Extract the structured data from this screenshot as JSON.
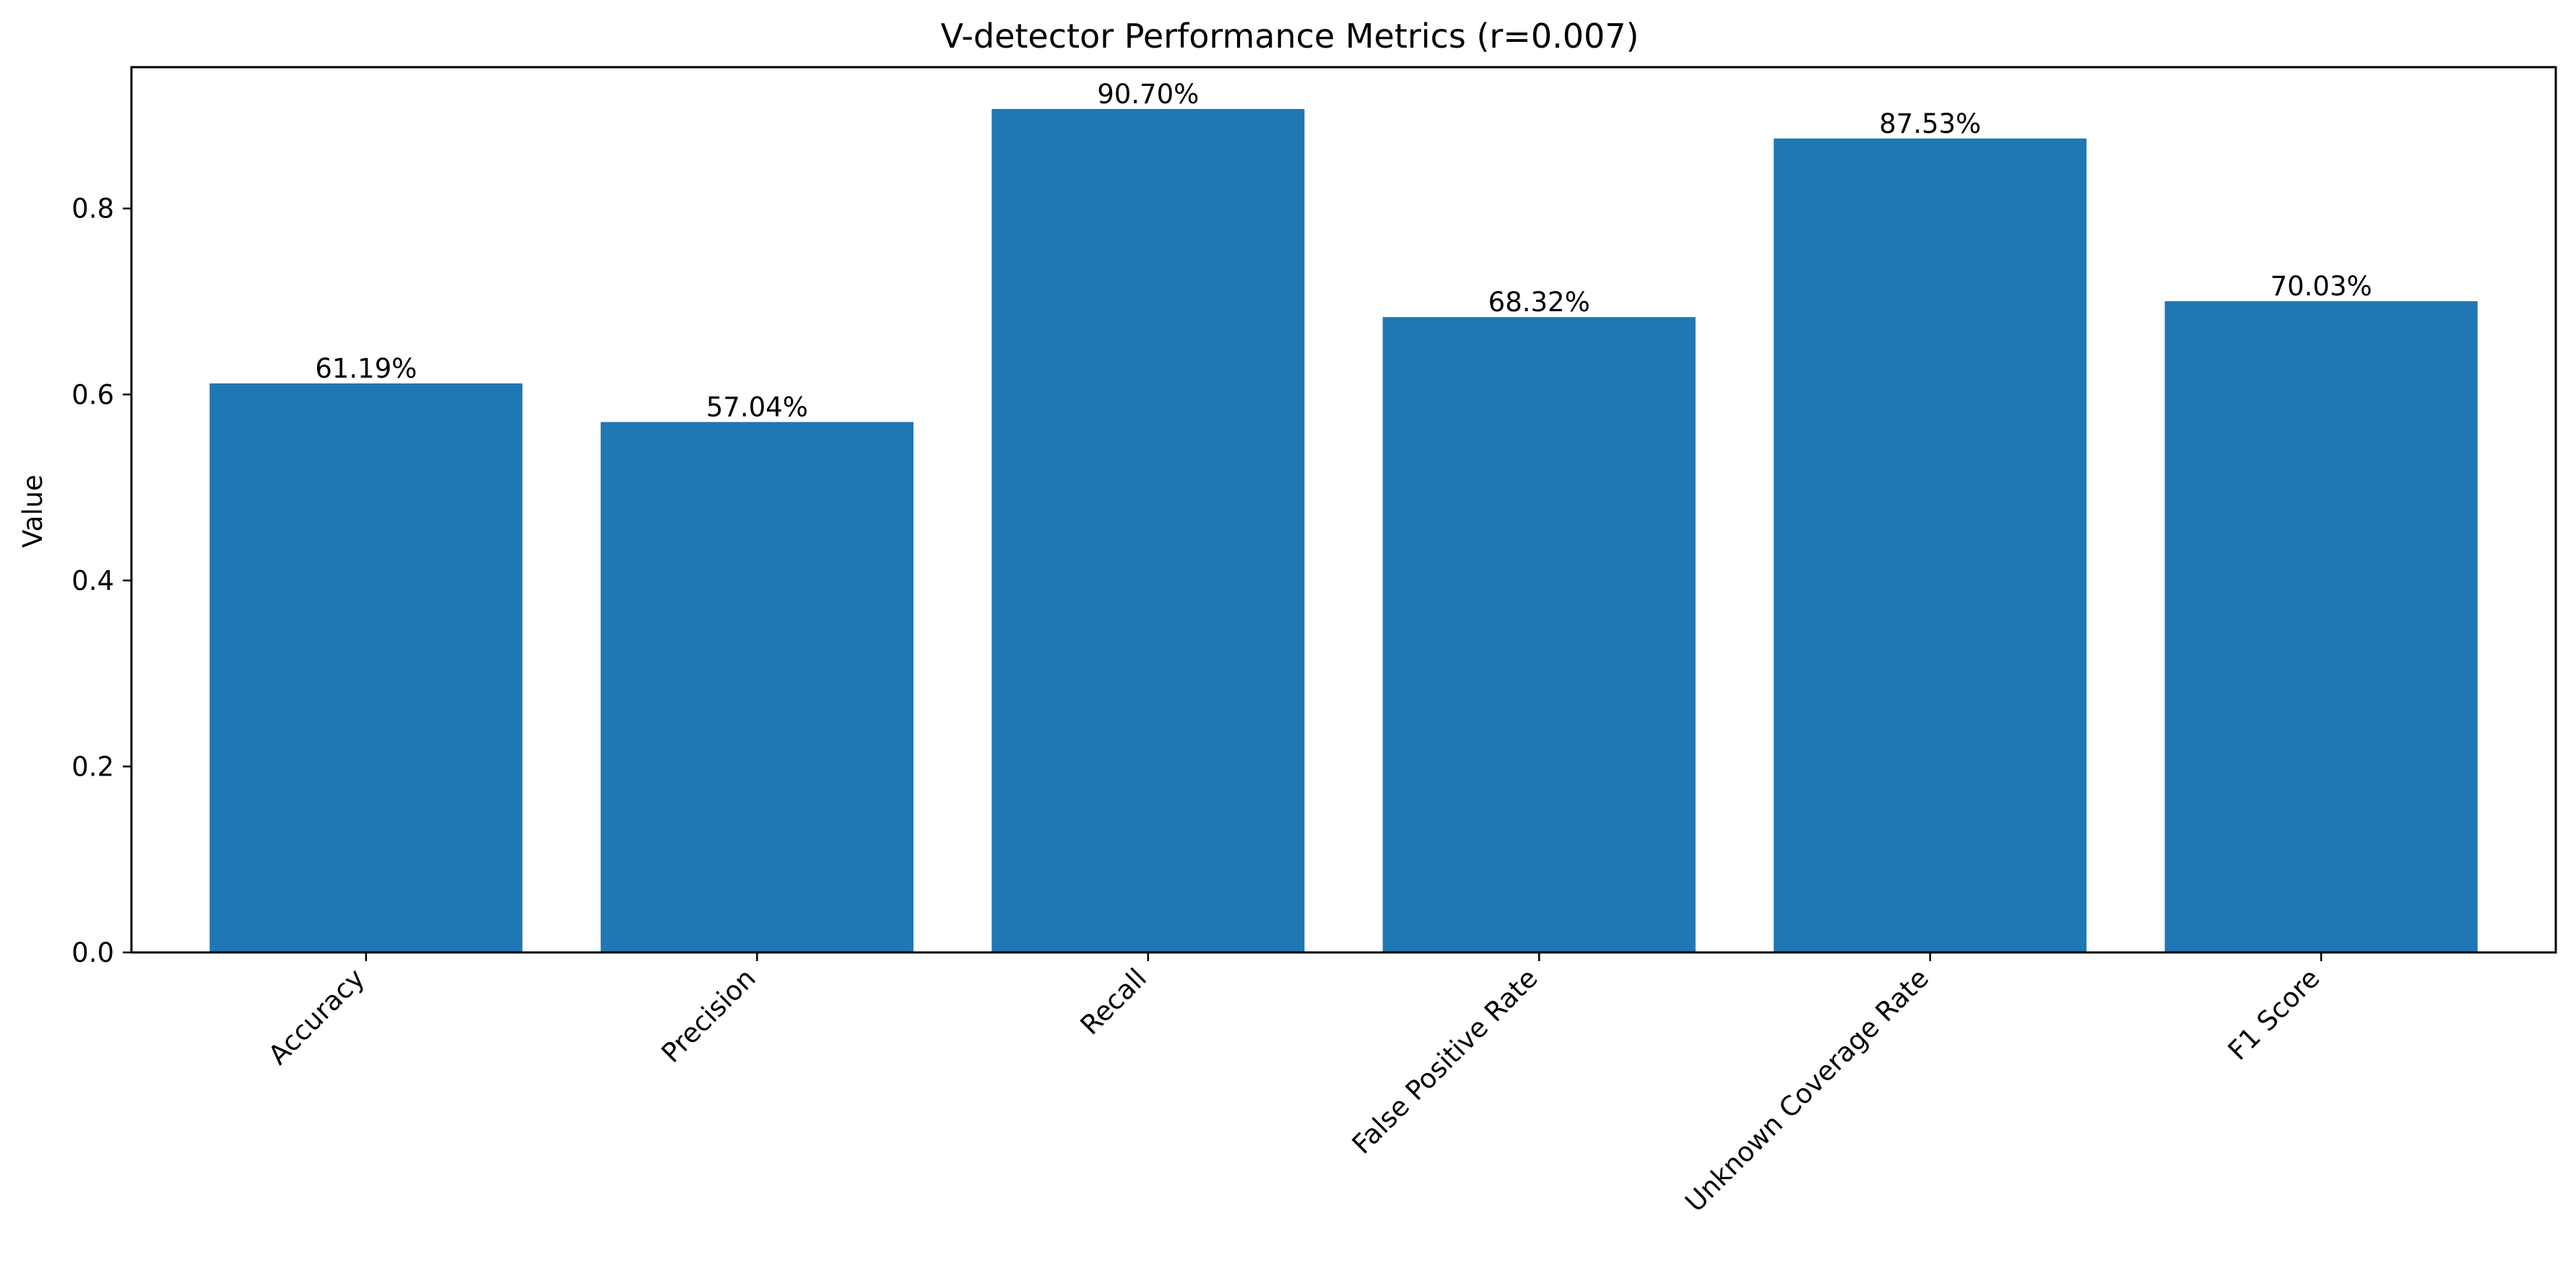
{
  "chart_data": {
    "type": "bar",
    "title": "V-detector Performance Metrics (r=0.007)",
    "xlabel": "",
    "ylabel": "Value",
    "categories": [
      "Accuracy",
      "Precision",
      "Recall",
      "False Positive Rate",
      "Unknown Coverage Rate",
      "F1 Score"
    ],
    "values": [
      0.6119,
      0.5704,
      0.907,
      0.6832,
      0.8753,
      0.7003
    ],
    "value_labels": [
      "61.19%",
      "57.04%",
      "90.70%",
      "68.32%",
      "87.53%",
      "70.03%"
    ],
    "ylim": [
      0,
      0.952
    ],
    "yticks": [
      0.0,
      0.2,
      0.4,
      0.6,
      0.8
    ],
    "ytick_labels": [
      "0.0",
      "0.2",
      "0.4",
      "0.6",
      "0.8"
    ],
    "grid": false,
    "legend": "none",
    "bar_color": "#1f77b4",
    "x_tick_rotation_deg": 45
  }
}
